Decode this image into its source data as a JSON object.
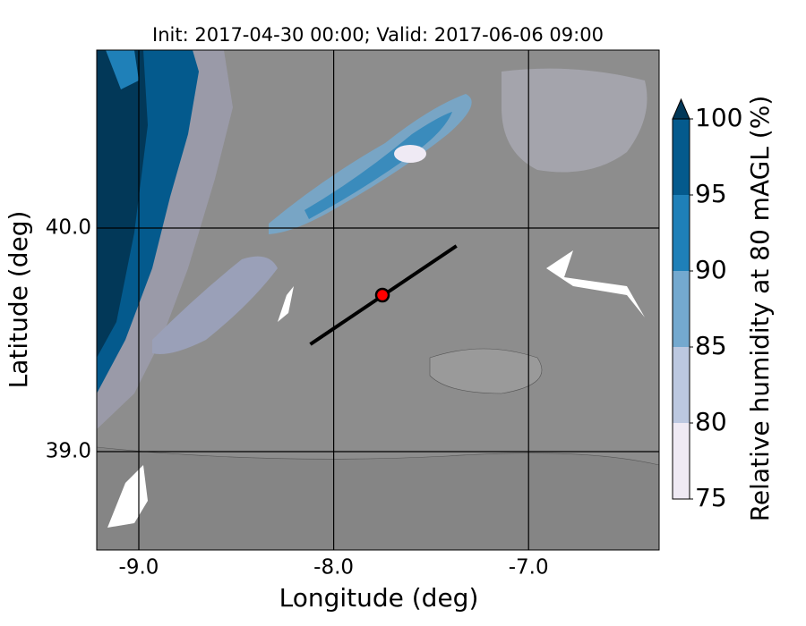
{
  "chart_data": {
    "type": "map",
    "title": "Init: 2017-04-30 00:00; Valid: 2017-06-06 09:00",
    "x_label": "Longitude (deg)",
    "y_label": "Latitude (deg)",
    "xlim": [
      -9.216,
      -6.33
    ],
    "ylim": [
      38.56,
      40.796
    ],
    "xticks": [
      {
        "value": -9,
        "label": "-9.0"
      },
      {
        "value": -8,
        "label": "-8.0"
      },
      {
        "value": -7,
        "label": "-7.0"
      }
    ],
    "yticks": [
      {
        "value": 39,
        "label": "39.0"
      },
      {
        "value": 40,
        "label": "40.0"
      }
    ],
    "grid": true,
    "transect": {
      "lon": [
        -8.12,
        -7.37
      ],
      "lat": [
        39.48,
        39.92
      ],
      "color": "#000000"
    },
    "point": {
      "lon": -7.75,
      "lat": 39.7,
      "color": "#ff0000"
    },
    "colorbar": {
      "label": "Relative humidity at 80 mAGL (%)",
      "levels": [
        75,
        80,
        85,
        90,
        95,
        100
      ],
      "colors": [
        "#efeaf4",
        "#bcc8e0",
        "#74a9cf",
        "#1f80b8",
        "#045a8d"
      ],
      "extend_color": "#023858",
      "ticks": [
        75,
        80,
        85,
        90,
        95,
        100
      ]
    }
  }
}
